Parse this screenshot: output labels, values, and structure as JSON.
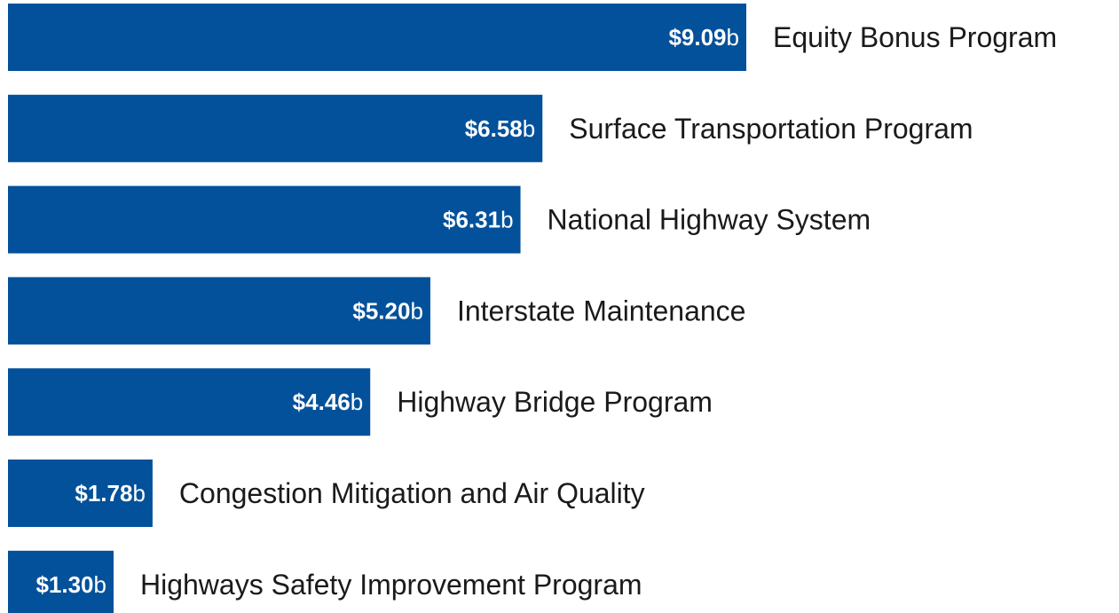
{
  "chart_data": {
    "type": "bar",
    "orientation": "horizontal",
    "categories": [
      "Equity Bonus Program",
      "Surface Transportation Program",
      "National Highway System",
      "Interstate Maintenance",
      "Highway Bridge Program",
      "Congestion Mitigation and Air Quality",
      "Highways Safety Improvement Program"
    ],
    "values": [
      9.09,
      6.58,
      6.31,
      5.2,
      4.46,
      1.78,
      1.3
    ],
    "value_labels": [
      "$9.09b",
      "$6.58b",
      "$6.31b",
      "$5.20b",
      "$4.46b",
      "$1.78b",
      "$1.30b"
    ],
    "color": "#03519a"
  }
}
